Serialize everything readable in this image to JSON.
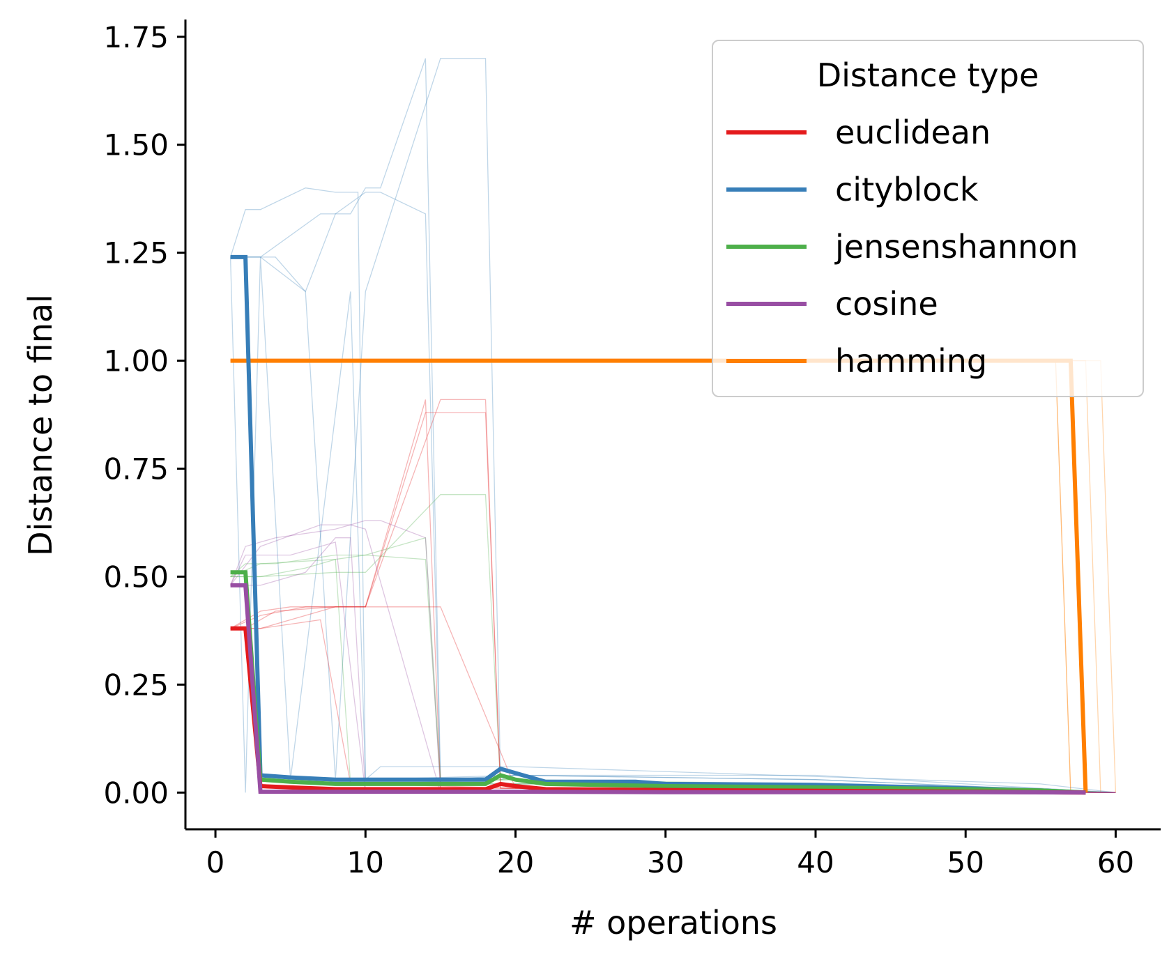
{
  "chart_data": {
    "type": "line",
    "xlabel": "# operations",
    "ylabel": "Distance to final",
    "xlim": [
      -2,
      63
    ],
    "ylim": [
      -0.085,
      1.79
    ],
    "xticks": [
      0,
      10,
      20,
      30,
      40,
      50,
      60
    ],
    "xtick_labels": [
      "0",
      "10",
      "20",
      "30",
      "40",
      "50",
      "60"
    ],
    "yticks": [
      0.0,
      0.25,
      0.5,
      0.75,
      1.0,
      1.25,
      1.5,
      1.75
    ],
    "ytick_labels": [
      "0.00",
      "0.25",
      "0.50",
      "0.75",
      "1.00",
      "1.25",
      "1.50",
      "1.75"
    ],
    "legend": {
      "title": "Distance type",
      "position": "top-right",
      "entries": [
        "euclidean",
        "cityblock",
        "jensenshannon",
        "cosine",
        "hamming"
      ]
    },
    "colors": {
      "euclidean": "#e41a1c",
      "cityblock": "#377eb8",
      "jensenshannon": "#4daf4a",
      "cosine": "#984ea3",
      "hamming": "#ff7f00"
    },
    "series": [
      {
        "name": "hamming",
        "x": [
          1,
          2,
          3,
          10,
          20,
          30,
          40,
          50,
          56,
          57,
          58
        ],
        "y": [
          1.0,
          1.0,
          1.0,
          1.0,
          1.0,
          1.0,
          1.0,
          1.0,
          1.0,
          1.0,
          0.0
        ],
        "background": [
          {
            "x": [
              1,
              20,
              40,
              55,
              56,
              57
            ],
            "y": [
              1.0,
              1.0,
              1.0,
              1.0,
              1.0,
              0.0
            ]
          },
          {
            "x": [
              1,
              20,
              40,
              56,
              57,
              58
            ],
            "y": [
              1.0,
              1.0,
              1.0,
              1.0,
              0.0,
              0.0
            ]
          },
          {
            "x": [
              1,
              20,
              40,
              57,
              58,
              59
            ],
            "y": [
              1.0,
              1.0,
              1.0,
              1.0,
              1.0,
              0.0
            ]
          },
          {
            "x": [
              1,
              20,
              40,
              58,
              59,
              60
            ],
            "y": [
              1.0,
              1.0,
              1.0,
              1.0,
              1.0,
              0.0
            ]
          }
        ]
      },
      {
        "name": "cityblock",
        "x": [
          1,
          2,
          3,
          5,
          8,
          10,
          15,
          18,
          19,
          20,
          22,
          28,
          30,
          40,
          50,
          55,
          58
        ],
        "y": [
          1.24,
          1.24,
          0.04,
          0.035,
          0.03,
          0.03,
          0.03,
          0.03,
          0.055,
          0.045,
          0.025,
          0.025,
          0.02,
          0.018,
          0.01,
          0.005,
          0.0
        ],
        "background": [
          {
            "x": [
              1,
              2,
              3,
              6,
              8,
              9,
              9.5,
              10,
              20,
              40,
              60
            ],
            "y": [
              1.24,
              1.35,
              1.35,
              1.4,
              1.39,
              1.39,
              1.39,
              0.03,
              0.04,
              0.04,
              0.0
            ]
          },
          {
            "x": [
              1,
              3,
              7,
              9,
              10,
              11,
              14,
              15,
              20,
              40,
              60
            ],
            "y": [
              1.24,
              1.24,
              1.34,
              1.34,
              1.4,
              1.4,
              1.7,
              0.03,
              0.04,
              0.03,
              0.0
            ]
          },
          {
            "x": [
              1,
              3,
              6,
              8,
              10,
              15,
              18,
              19,
              20,
              40,
              60
            ],
            "y": [
              1.24,
              1.24,
              1.16,
              0.03,
              1.16,
              1.7,
              1.7,
              0.03,
              0.04,
              0.03,
              0.0
            ]
          },
          {
            "x": [
              1,
              2,
              4,
              6,
              8,
              10,
              11,
              14,
              15,
              30,
              60
            ],
            "y": [
              1.24,
              1.24,
              1.24,
              1.16,
              1.34,
              1.39,
              1.39,
              1.34,
              0.02,
              0.02,
              0.0
            ]
          },
          {
            "x": [
              1,
              2,
              3,
              5,
              9,
              10,
              11,
              16,
              20,
              55,
              60
            ],
            "y": [
              1.24,
              0.0,
              1.24,
              0.03,
              1.16,
              0.03,
              0.06,
              0.06,
              0.06,
              0.02,
              0.0
            ]
          }
        ]
      },
      {
        "name": "jensenshannon",
        "x": [
          1,
          2,
          3,
          5,
          8,
          10,
          15,
          18,
          19,
          20,
          22,
          30,
          40,
          50,
          55,
          58
        ],
        "y": [
          0.51,
          0.51,
          0.03,
          0.025,
          0.02,
          0.02,
          0.02,
          0.02,
          0.04,
          0.03,
          0.02,
          0.015,
          0.012,
          0.008,
          0.005,
          0.0
        ],
        "background": [
          {
            "x": [
              1,
              3,
              8,
              10,
              14,
              15,
              20,
              40,
              60
            ],
            "y": [
              0.5,
              0.53,
              0.54,
              0.55,
              0.59,
              0.03,
              0.03,
              0.02,
              0.0
            ]
          },
          {
            "x": [
              1,
              3,
              8,
              10,
              15,
              18,
              19,
              40,
              60
            ],
            "y": [
              0.5,
              0.5,
              0.51,
              0.51,
              0.69,
              0.69,
              0.02,
              0.02,
              0.0
            ]
          },
          {
            "x": [
              1,
              2,
              4,
              8,
              10,
              14,
              15,
              30,
              60
            ],
            "y": [
              0.5,
              0.53,
              0.53,
              0.55,
              0.55,
              0.54,
              0.02,
              0.02,
              0.0
            ]
          },
          {
            "x": [
              1,
              3,
              6,
              8,
              9,
              10,
              20,
              50,
              60
            ],
            "y": [
              0.5,
              0.5,
              0.52,
              0.54,
              0.02,
              0.02,
              0.03,
              0.01,
              0.0
            ]
          }
        ]
      },
      {
        "name": "euclidean",
        "x": [
          1,
          2,
          3,
          5,
          8,
          10,
          15,
          18,
          19,
          20,
          22,
          30,
          40,
          50,
          58
        ],
        "y": [
          0.38,
          0.38,
          0.015,
          0.012,
          0.008,
          0.008,
          0.008,
          0.008,
          0.02,
          0.015,
          0.008,
          0.006,
          0.004,
          0.002,
          0.0
        ],
        "background": [
          {
            "x": [
              1,
              3,
              6,
              8,
              10,
              14,
              15,
              20,
              40,
              60
            ],
            "y": [
              0.38,
              0.41,
              0.43,
              0.43,
              0.43,
              0.91,
              0.01,
              0.01,
              0.01,
              0.0
            ]
          },
          {
            "x": [
              1,
              3,
              8,
              10,
              15,
              18,
              19,
              40,
              60
            ],
            "y": [
              0.38,
              0.38,
              0.43,
              0.43,
              0.91,
              0.91,
              0.01,
              0.01,
              0.0
            ]
          },
          {
            "x": [
              1,
              3,
              5,
              8,
              10,
              14,
              16,
              18,
              19,
              50,
              60
            ],
            "y": [
              0.38,
              0.42,
              0.43,
              0.43,
              0.43,
              0.88,
              0.88,
              0.88,
              0.01,
              0.005,
              0.0
            ]
          },
          {
            "x": [
              1,
              2,
              4,
              8,
              10,
              15,
              20,
              40,
              60
            ],
            "y": [
              0.38,
              0.38,
              0.42,
              0.43,
              0.43,
              0.43,
              0.01,
              0.01,
              0.0
            ]
          },
          {
            "x": [
              1,
              3,
              7,
              9,
              10,
              20,
              60
            ],
            "y": [
              0.38,
              0.38,
              0.4,
              0.02,
              0.02,
              0.01,
              0.0
            ]
          }
        ]
      },
      {
        "name": "cosine",
        "x": [
          1,
          2,
          3,
          5,
          10,
          20,
          30,
          40,
          50,
          58
        ],
        "y": [
          0.48,
          0.48,
          0.002,
          0.002,
          0.002,
          0.002,
          0.001,
          0.001,
          0.001,
          0.0
        ],
        "background": [
          {
            "x": [
              1,
              2,
              4,
              8,
              10,
              11,
              14,
              15,
              20,
              60
            ],
            "y": [
              0.48,
              0.57,
              0.59,
              0.61,
              0.63,
              0.63,
              0.59,
              0.0,
              0.0,
              0.0
            ]
          },
          {
            "x": [
              1,
              3,
              7,
              9,
              10,
              15,
              20,
              60
            ],
            "y": [
              0.48,
              0.57,
              0.62,
              0.62,
              0.61,
              0.0,
              0.0,
              0.0
            ]
          },
          {
            "x": [
              1,
              3,
              6,
              8,
              9,
              10,
              20,
              60
            ],
            "y": [
              0.48,
              0.48,
              0.51,
              0.59,
              0.59,
              0.0,
              0.0,
              0.0
            ]
          },
          {
            "x": [
              1,
              2,
              5,
              8,
              10,
              11,
              20,
              60
            ],
            "y": [
              0.48,
              0.55,
              0.55,
              0.58,
              0.0,
              0.0,
              0.0,
              0.0
            ]
          }
        ]
      }
    ]
  }
}
